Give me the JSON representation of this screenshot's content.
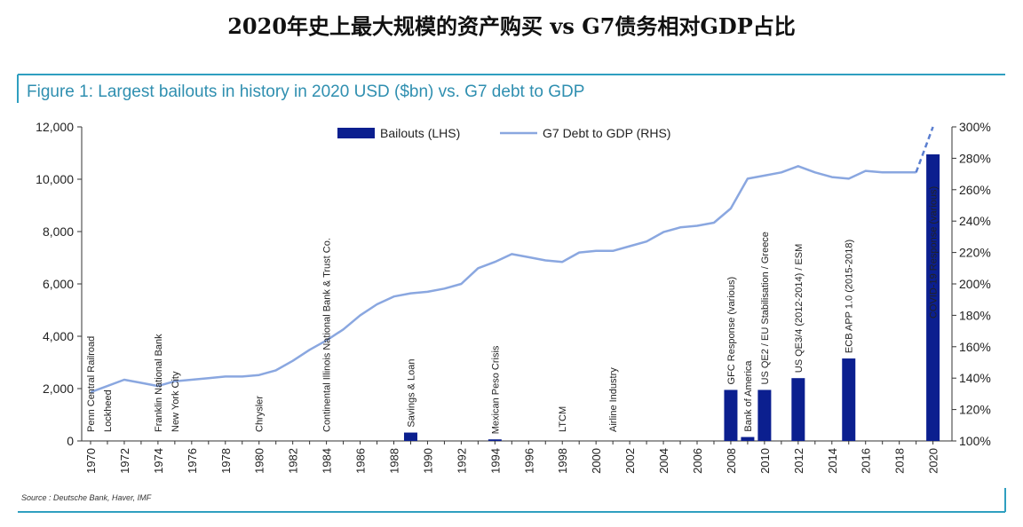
{
  "page_title": "2020年史上最大规模的资产购买 vs G7债务相对GDP占比",
  "figure_title": "Figure 1: Largest bailouts in history in 2020 USD ($bn) vs. G7 debt to GDP",
  "source": "Source : Deutsche Bank, Haver, IMF",
  "colors": {
    "bar": "#0b1f8f",
    "line": "#8aa7e0",
    "accent": "#2f9fc0"
  },
  "chart_data": {
    "type": "bar",
    "x_ticks": [
      "1970",
      "1972",
      "1974",
      "1976",
      "1978",
      "1980",
      "1982",
      "1984",
      "1986",
      "1988",
      "1990",
      "1992",
      "1994",
      "1996",
      "1998",
      "2000",
      "2002",
      "2004",
      "2006",
      "2008",
      "2010",
      "2012",
      "2014",
      "2016",
      "2018",
      "2020"
    ],
    "y_left_ticks": [
      "12,000",
      "10,000",
      "8,000",
      "6,000",
      "4,000",
      "2,000",
      "0"
    ],
    "y_right_ticks": [
      "300%",
      "280%",
      "260%",
      "240%",
      "220%",
      "200%",
      "180%",
      "160%",
      "140%",
      "120%",
      "100%"
    ],
    "ylim_left": [
      0,
      12000
    ],
    "ylim_right": [
      100,
      300
    ],
    "legend": {
      "bars": "Bailouts (LHS)",
      "line": "G7 Debt to GDP (RHS)"
    },
    "bailouts": [
      {
        "year": 1970,
        "value": 0,
        "label": "Penn Central Railroad"
      },
      {
        "year": 1971,
        "value": 0,
        "label": "Lockheed"
      },
      {
        "year": 1974,
        "value": 0,
        "label": "Franklin National Bank"
      },
      {
        "year": 1975,
        "value": 0,
        "label": "New York City"
      },
      {
        "year": 1980,
        "value": 0,
        "label": "Chrysler"
      },
      {
        "year": 1984,
        "value": 0,
        "label": "Continental Illinois National Bank & Trust Co."
      },
      {
        "year": 1989,
        "value": 320,
        "label": "Savings & Loan"
      },
      {
        "year": 1994,
        "value": 60,
        "label": "Mexican Peso Crisis"
      },
      {
        "year": 1998,
        "value": 0,
        "label": "LTCM"
      },
      {
        "year": 2001,
        "value": 0,
        "label": "Airline Industry"
      },
      {
        "year": 2008,
        "value": 1950,
        "label": "GFC Response (various)"
      },
      {
        "year": 2009,
        "value": 150,
        "label": "Bank of America"
      },
      {
        "year": 2010,
        "value": 1950,
        "label": "US QE2 / EU Stabilisation / Greece"
      },
      {
        "year": 2012,
        "value": 2400,
        "label": "US QE3/4 (2012-2014) / ESM"
      },
      {
        "year": 2015,
        "value": 3150,
        "label": "ECB APP 1.0 (2015-2018)"
      },
      {
        "year": 2020,
        "value": 10950,
        "label": "COVID-19 Response (various)"
      }
    ],
    "debt_to_gdp": {
      "x": [
        1970,
        1971,
        1972,
        1973,
        1974,
        1975,
        1976,
        1977,
        1978,
        1979,
        1980,
        1981,
        1982,
        1983,
        1984,
        1985,
        1986,
        1987,
        1988,
        1989,
        1990,
        1991,
        1992,
        1993,
        1994,
        1995,
        1996,
        1997,
        1998,
        1999,
        2000,
        2001,
        2002,
        2003,
        2004,
        2005,
        2006,
        2007,
        2008,
        2009,
        2010,
        2011,
        2012,
        2013,
        2014,
        2015,
        2016,
        2017,
        2018,
        2019
      ],
      "y": [
        131,
        135,
        139,
        137,
        135,
        138,
        139,
        140,
        141,
        141,
        142,
        145,
        151,
        158,
        164,
        171,
        180,
        187,
        192,
        194,
        195,
        197,
        200,
        210,
        214,
        219,
        217,
        215,
        214,
        220,
        221,
        221,
        224,
        227,
        233,
        236,
        237,
        239,
        248,
        267,
        269,
        271,
        275,
        271,
        268,
        267,
        272,
        271,
        271,
        271
      ],
      "projection_x": [
        2019,
        2020
      ],
      "projection_y": [
        271,
        300
      ]
    }
  }
}
